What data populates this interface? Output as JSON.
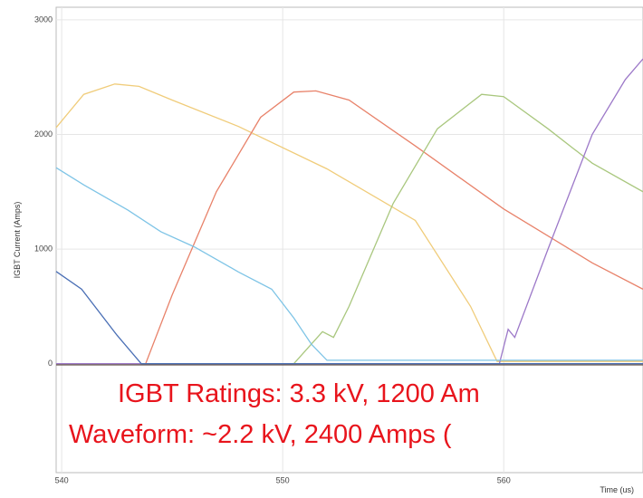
{
  "chart_data": {
    "type": "line",
    "xlabel": "Time (us)",
    "ylabel": "IGBT Current (Amps)",
    "xlim": [
      539.75,
      566.3
    ],
    "ylim": [
      -950,
      3110
    ],
    "xticks": [
      540,
      550,
      560
    ],
    "yticks": [
      0,
      1000,
      2000,
      3000
    ],
    "grid": true,
    "annotations": [
      "IGBT Ratings: 3.3 kV, 1200 Am",
      "Waveform: ~2.2 kV, 2400 Amps ("
    ],
    "series": [
      {
        "color": "#f0cc7a",
        "x": [
          539.75,
          541,
          542.4,
          543.5,
          545,
          548,
          552,
          556,
          558.5,
          559.7,
          566.3
        ],
        "values": [
          2060,
          2350,
          2440,
          2420,
          2300,
          2070,
          1700,
          1250,
          500,
          20,
          20
        ]
      },
      {
        "color": "#e8826a",
        "x": [
          539.75,
          543.8,
          545,
          547,
          549,
          550.5,
          551.5,
          553,
          556,
          560,
          564,
          566.3
        ],
        "values": [
          0,
          0,
          600,
          1500,
          2150,
          2370,
          2380,
          2300,
          1900,
          1350,
          880,
          650
        ]
      },
      {
        "color": "#a9c77e",
        "x": [
          539.75,
          550.5,
          551.8,
          552.3,
          553,
          555,
          557,
          559,
          560,
          562,
          564,
          566.3
        ],
        "values": [
          0,
          0,
          280,
          230,
          500,
          1400,
          2050,
          2350,
          2330,
          2050,
          1750,
          1500
        ]
      },
      {
        "color": "#9c78c8",
        "x": [
          539.75,
          559.8,
          560.2,
          560.5,
          562,
          564,
          565.5,
          566.3
        ],
        "values": [
          0,
          0,
          300,
          230,
          1000,
          2000,
          2480,
          2660
        ]
      },
      {
        "color": "#7ec4e6",
        "x": [
          539.75,
          541,
          543,
          544.5,
          546,
          548,
          549.5,
          550.5,
          551.3,
          552,
          566.3
        ],
        "values": [
          1710,
          1560,
          1340,
          1150,
          1020,
          800,
          650,
          400,
          170,
          30,
          30
        ]
      },
      {
        "color": "#4a6fb5",
        "x": [
          539.75,
          540.9,
          542.5,
          543.6,
          566.3
        ],
        "values": [
          805,
          650,
          250,
          0,
          0
        ]
      },
      {
        "color": "#6b5a50",
        "x": [
          539.75,
          566.3
        ],
        "values": [
          -10,
          -10
        ]
      }
    ]
  }
}
